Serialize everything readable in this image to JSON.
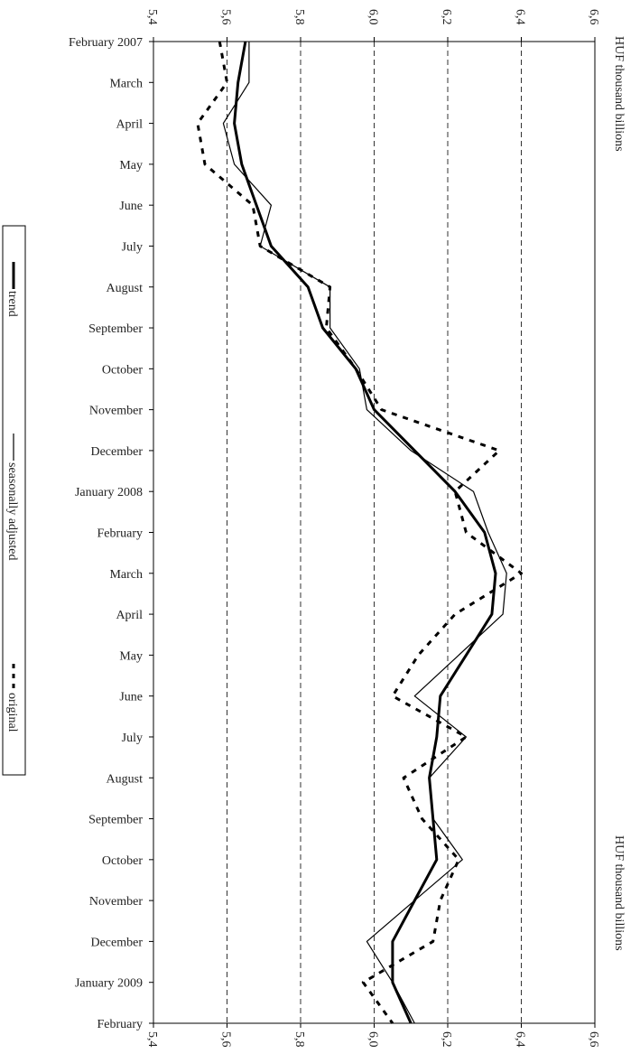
{
  "chart_data": {
    "type": "line",
    "orientation": "horizontal",
    "axis_label": "HUF thousand billions",
    "categories": [
      "February 2007",
      "March",
      "April",
      "May",
      "June",
      "July",
      "August",
      "September",
      "October",
      "November",
      "December",
      "January 2008",
      "February",
      "March",
      "April",
      "May",
      "June",
      "July",
      "August",
      "September",
      "October",
      "November",
      "December",
      "January 2009",
      "February"
    ],
    "series": [
      {
        "name": "trend",
        "color": "#000000",
        "line_style": "thick",
        "values": [
          5.65,
          5.63,
          5.62,
          5.64,
          5.68,
          5.72,
          5.82,
          5.86,
          5.95,
          6.0,
          6.11,
          6.22,
          6.3,
          6.33,
          6.32,
          6.25,
          6.18,
          6.17,
          6.15,
          6.16,
          6.17,
          6.11,
          6.05,
          6.05,
          6.1
        ]
      },
      {
        "name": "seasonally adjusted",
        "color": "#000000",
        "line_style": "thin",
        "values": [
          5.66,
          5.66,
          5.59,
          5.62,
          5.72,
          5.69,
          5.88,
          5.88,
          5.96,
          5.98,
          6.1,
          6.27,
          6.31,
          6.36,
          6.35,
          6.23,
          6.11,
          6.25,
          6.15,
          6.16,
          6.24,
          6.11,
          5.98,
          6.05,
          6.11
        ]
      },
      {
        "name": "original",
        "color": "#000000",
        "line_style": "dotted",
        "values": [
          5.58,
          5.6,
          5.52,
          5.54,
          5.67,
          5.69,
          5.88,
          5.87,
          5.95,
          6.02,
          6.34,
          6.22,
          6.25,
          6.4,
          6.22,
          6.12,
          6.05,
          6.25,
          6.08,
          6.13,
          6.23,
          6.18,
          6.16,
          5.97,
          6.05
        ]
      }
    ],
    "ylim": [
      5.4,
      6.6
    ],
    "yticks": [
      {
        "value": 5.4,
        "label": "5,4"
      },
      {
        "value": 5.6,
        "label": "5,6"
      },
      {
        "value": 5.8,
        "label": "5,8"
      },
      {
        "value": 6.0,
        "label": "6,0"
      },
      {
        "value": 6.2,
        "label": "6,2"
      },
      {
        "value": 6.4,
        "label": "6,4"
      },
      {
        "value": 6.6,
        "label": "6,6"
      }
    ],
    "grid": true
  }
}
